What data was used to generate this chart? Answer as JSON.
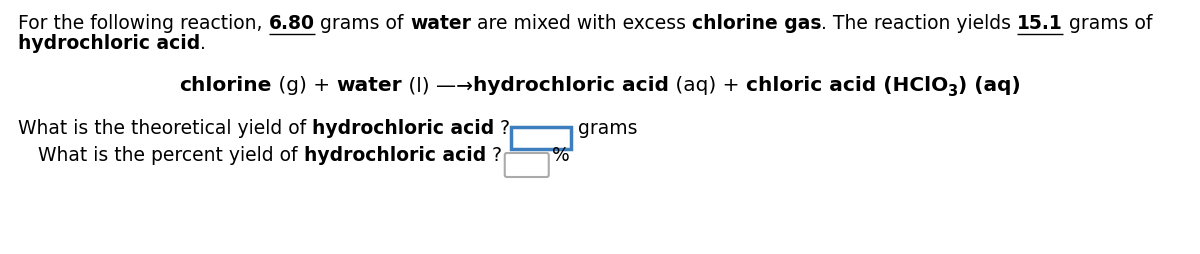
{
  "bg_color": "#ffffff",
  "text_color": "#000000",
  "box1_border": "#3d7ebf",
  "box2_border": "#aaaaaa",
  "font_size": 13.5,
  "eq_font_size": 14.5,
  "line1": "For the following reaction, __6.80__ grams of __water__ are mixed with excess __chlorine gas__. The reaction yields __15.1__ grams of",
  "line2": "__hydrochloric acid__.",
  "q1_normal": "What is the theoretical yield of ",
  "q1_bold": "hydrochloric acid",
  "q1_end": " ?",
  "q2_normal": "What is the percent yield of ",
  "q2_bold": "hydrochloric acid",
  "q2_end": " ?",
  "grams_label": "grams",
  "pct_label": "%"
}
